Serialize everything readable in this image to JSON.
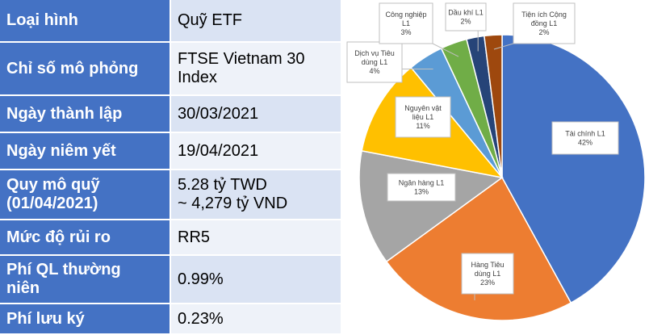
{
  "table": {
    "rows": [
      {
        "label": [
          "Loại hình"
        ],
        "value": [
          "Quỹ ETF"
        ]
      },
      {
        "label": [
          "Chỉ số mô phỏng"
        ],
        "value": [
          "FTSE Vietnam 30",
          "Index"
        ]
      },
      {
        "label": [
          "Ngày thành lập"
        ],
        "value": [
          "30/03/2021"
        ]
      },
      {
        "label": [
          "Ngày niêm yết"
        ],
        "value": [
          "19/04/2021"
        ]
      },
      {
        "label": [
          "Quy mô quỹ",
          "(01/04/2021)"
        ],
        "value": [
          "5.28 tỷ TWD",
          "~ 4,279 tỷ VND"
        ]
      },
      {
        "label": [
          "Mức độ rủi ro"
        ],
        "value": [
          "RR5"
        ]
      },
      {
        "label": [
          "Phí QL thường",
          "niên"
        ],
        "value": [
          "0.99%"
        ]
      },
      {
        "label": [
          "Phí lưu ký"
        ],
        "value": [
          "0.23%"
        ]
      }
    ]
  },
  "chart_data": {
    "type": "pie",
    "title": "",
    "slices": [
      {
        "name": "Tài chính L1",
        "label_lines": [
          "Tài chính L1"
        ],
        "value": 42,
        "value_label": "42%",
        "color": "#4472c4"
      },
      {
        "name": "Hàng Tiêu dùng L1",
        "label_lines": [
          "Hàng Tiêu",
          "dùng L1"
        ],
        "value": 23,
        "value_label": "23%",
        "color": "#ed7d31"
      },
      {
        "name": "Ngân hàng L1",
        "label_lines": [
          "Ngân hàng L1"
        ],
        "value": 13,
        "value_label": "13%",
        "color": "#a5a5a5"
      },
      {
        "name": "Nguyên vật liệu L1",
        "label_lines": [
          "Nguyên vật",
          "liệu L1"
        ],
        "value": 11,
        "value_label": "11%",
        "color": "#ffc000"
      },
      {
        "name": "Dịch vụ Tiêu dùng L1",
        "label_lines": [
          "Dịch vụ Tiêu",
          "dùng L1"
        ],
        "value": 4,
        "value_label": "4%",
        "color": "#5b9bd5"
      },
      {
        "name": "Công nghiệp L1",
        "label_lines": [
          "Công nghiệp",
          "L1"
        ],
        "value": 3,
        "value_label": "3%",
        "color": "#70ad47"
      },
      {
        "name": "Dầu khí L1",
        "label_lines": [
          "Dầu khí L1"
        ],
        "value": 2,
        "value_label": "2%",
        "color": "#264478"
      },
      {
        "name": "Tiện ích Cộng đồng L1",
        "label_lines": [
          "Tiện ích Cộng",
          "đồng L1"
        ],
        "value": 2,
        "value_label": "2%",
        "color": "#9e480e"
      }
    ],
    "legend": "none",
    "start_angle_deg": 0,
    "direction": "clockwise"
  }
}
